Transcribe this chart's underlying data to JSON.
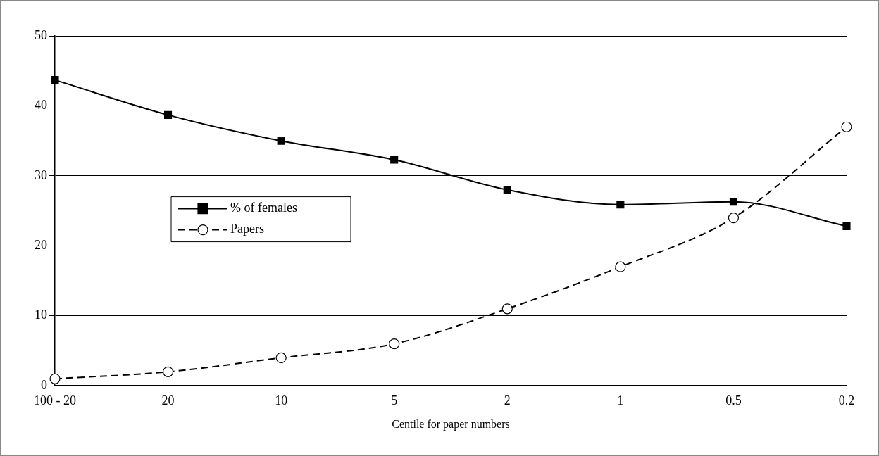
{
  "chart_data": {
    "type": "line",
    "xlabel": "Centile for paper numbers",
    "categories": [
      "100 - 20",
      "20",
      "10",
      "5",
      "2",
      "1",
      "0.5",
      "0.2"
    ],
    "series": [
      {
        "name": "% of females",
        "color": "#000000",
        "marker": "square",
        "line_style": "solid",
        "values": [
          43.7,
          38.7,
          35,
          32.3,
          28,
          25.9,
          26.3,
          22.8
        ]
      },
      {
        "name": "Papers",
        "color": "#000000",
        "marker": "circle",
        "line_style": "dashed",
        "values": [
          1,
          2,
          4,
          6,
          11,
          17,
          24,
          37
        ]
      }
    ],
    "ylim": [
      0,
      50
    ],
    "yticks": [
      0,
      10,
      20,
      30,
      40,
      50
    ],
    "grid": "y",
    "legend": "left"
  }
}
